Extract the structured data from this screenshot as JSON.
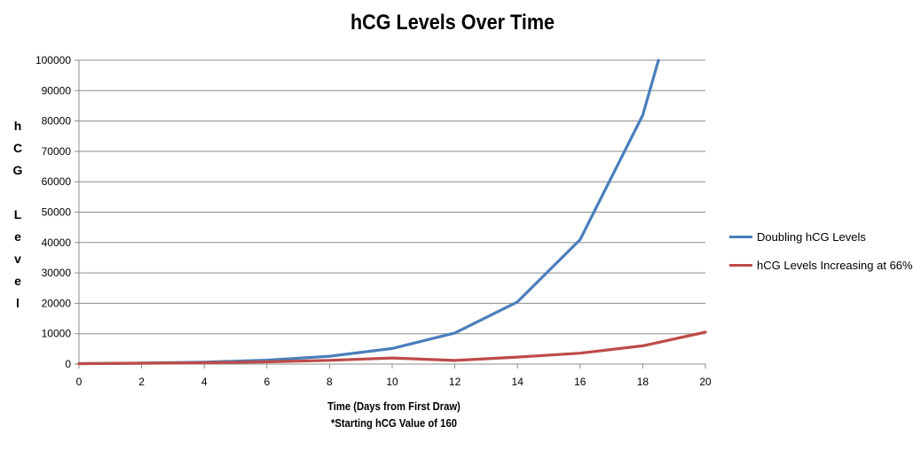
{
  "chart_data": {
    "type": "line",
    "title": "hCG Levels Over Time",
    "xlabel": "Time (Days from First Draw)",
    "note": "*Starting hCG Value of 160",
    "ylabel": "hCG Level",
    "xlim": [
      0,
      20
    ],
    "ylim": [
      0,
      100000
    ],
    "x_ticks": [
      "0",
      "2",
      "4",
      "6",
      "8",
      "10",
      "12",
      "14",
      "16",
      "18",
      "20"
    ],
    "y_ticks": [
      "0",
      "10000",
      "20000",
      "30000",
      "40000",
      "50000",
      "60000",
      "70000",
      "80000",
      "90000",
      "100000"
    ],
    "grid": "horizontal",
    "legend_position": "right",
    "series": [
      {
        "name": "Doubling hCG Levels",
        "color": "#4a7ebb",
        "x": [
          0,
          2,
          4,
          6,
          8,
          10,
          12,
          14,
          16,
          18,
          18.5
        ],
        "y": [
          160,
          320,
          640,
          1280,
          2560,
          5120,
          10240,
          20480,
          40960,
          81920,
          100000
        ]
      },
      {
        "name": "hCG Levels Increasing at 66%",
        "color": "#be4b48",
        "x": [
          0,
          2,
          4,
          6,
          8,
          10,
          12,
          14,
          16,
          18,
          20
        ],
        "y": [
          160,
          266,
          441,
          732,
          1215,
          2017,
          1200,
          2300,
          3600,
          6000,
          10500
        ]
      }
    ]
  }
}
